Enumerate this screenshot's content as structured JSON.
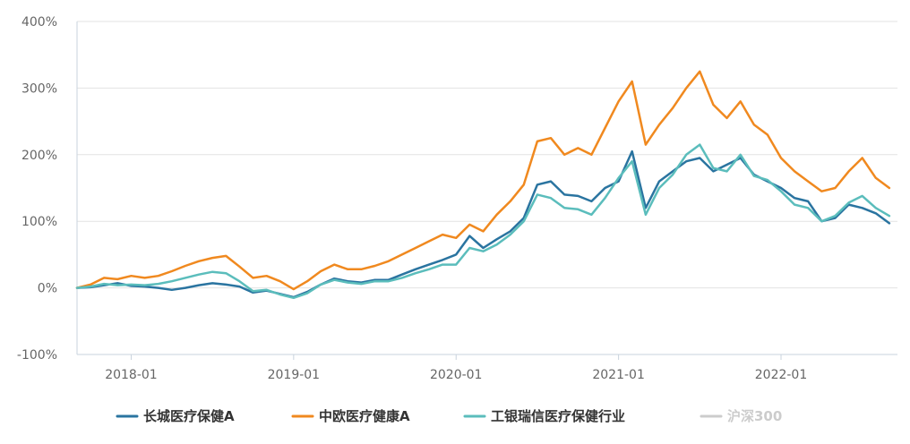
{
  "chart_data": {
    "type": "line",
    "title": "",
    "xlabel": "",
    "ylabel": "",
    "x_ticks": [
      "2018-01",
      "2019-01",
      "2020-01",
      "2021-01",
      "2022-01"
    ],
    "y_ticks": [
      "400%",
      "300%",
      "200%",
      "100%",
      "0%",
      "-100%"
    ],
    "ylim": [
      -100,
      400
    ],
    "xlim": [
      "2017-09",
      "2022-09"
    ],
    "grid": "horizontal",
    "legend_position": "bottom",
    "series": [
      {
        "name": "长城医疗保健A",
        "color": "#2a74a0",
        "active": true,
        "points": [
          [
            "2017-09",
            0
          ],
          [
            "2017-10",
            1
          ],
          [
            "2017-11",
            4
          ],
          [
            "2017-12",
            7
          ],
          [
            "2018-01",
            3
          ],
          [
            "2018-02",
            2
          ],
          [
            "2018-03",
            0
          ],
          [
            "2018-04",
            -3
          ],
          [
            "2018-05",
            0
          ],
          [
            "2018-06",
            4
          ],
          [
            "2018-07",
            7
          ],
          [
            "2018-08",
            5
          ],
          [
            "2018-09",
            2
          ],
          [
            "2018-10",
            -7
          ],
          [
            "2018-11",
            -4
          ],
          [
            "2018-12",
            -9
          ],
          [
            "2019-01",
            -14
          ],
          [
            "2019-02",
            -6
          ],
          [
            "2019-03",
            5
          ],
          [
            "2019-04",
            14
          ],
          [
            "2019-05",
            10
          ],
          [
            "2019-06",
            8
          ],
          [
            "2019-07",
            12
          ],
          [
            "2019-08",
            12
          ],
          [
            "2019-09",
            20
          ],
          [
            "2019-10",
            28
          ],
          [
            "2019-11",
            35
          ],
          [
            "2019-12",
            42
          ],
          [
            "2020-01",
            50
          ],
          [
            "2020-02",
            78
          ],
          [
            "2020-03",
            60
          ],
          [
            "2020-04",
            73
          ],
          [
            "2020-05",
            85
          ],
          [
            "2020-06",
            105
          ],
          [
            "2020-07",
            155
          ],
          [
            "2020-08",
            160
          ],
          [
            "2020-09",
            140
          ],
          [
            "2020-10",
            138
          ],
          [
            "2020-11",
            130
          ],
          [
            "2020-12",
            150
          ],
          [
            "2021-01",
            160
          ],
          [
            "2021-02",
            205
          ],
          [
            "2021-03",
            120
          ],
          [
            "2021-04",
            160
          ],
          [
            "2021-05",
            175
          ],
          [
            "2021-06",
            190
          ],
          [
            "2021-07",
            195
          ],
          [
            "2021-08",
            175
          ],
          [
            "2021-09",
            185
          ],
          [
            "2021-10",
            195
          ],
          [
            "2021-11",
            170
          ],
          [
            "2021-12",
            160
          ],
          [
            "2022-01",
            150
          ],
          [
            "2022-02",
            135
          ],
          [
            "2022-03",
            130
          ],
          [
            "2022-04",
            100
          ],
          [
            "2022-05",
            105
          ],
          [
            "2022-06",
            125
          ],
          [
            "2022-07",
            120
          ],
          [
            "2022-08",
            112
          ],
          [
            "2022-09",
            97
          ]
        ]
      },
      {
        "name": "中欧医疗健康A",
        "color": "#f0891f",
        "active": true,
        "points": [
          [
            "2017-09",
            0
          ],
          [
            "2017-10",
            5
          ],
          [
            "2017-11",
            15
          ],
          [
            "2017-12",
            13
          ],
          [
            "2018-01",
            18
          ],
          [
            "2018-02",
            15
          ],
          [
            "2018-03",
            18
          ],
          [
            "2018-04",
            25
          ],
          [
            "2018-05",
            33
          ],
          [
            "2018-06",
            40
          ],
          [
            "2018-07",
            45
          ],
          [
            "2018-08",
            48
          ],
          [
            "2018-09",
            32
          ],
          [
            "2018-10",
            15
          ],
          [
            "2018-11",
            18
          ],
          [
            "2018-12",
            10
          ],
          [
            "2019-01",
            -2
          ],
          [
            "2019-02",
            10
          ],
          [
            "2019-03",
            25
          ],
          [
            "2019-04",
            35
          ],
          [
            "2019-05",
            28
          ],
          [
            "2019-06",
            28
          ],
          [
            "2019-07",
            33
          ],
          [
            "2019-08",
            40
          ],
          [
            "2019-09",
            50
          ],
          [
            "2019-10",
            60
          ],
          [
            "2019-11",
            70
          ],
          [
            "2019-12",
            80
          ],
          [
            "2020-01",
            75
          ],
          [
            "2020-02",
            95
          ],
          [
            "2020-03",
            85
          ],
          [
            "2020-04",
            110
          ],
          [
            "2020-05",
            130
          ],
          [
            "2020-06",
            155
          ],
          [
            "2020-07",
            220
          ],
          [
            "2020-08",
            225
          ],
          [
            "2020-09",
            200
          ],
          [
            "2020-10",
            210
          ],
          [
            "2020-11",
            200
          ],
          [
            "2020-12",
            240
          ],
          [
            "2021-01",
            280
          ],
          [
            "2021-02",
            310
          ],
          [
            "2021-03",
            215
          ],
          [
            "2021-04",
            245
          ],
          [
            "2021-05",
            270
          ],
          [
            "2021-06",
            300
          ],
          [
            "2021-07",
            325
          ],
          [
            "2021-08",
            275
          ],
          [
            "2021-09",
            255
          ],
          [
            "2021-10",
            280
          ],
          [
            "2021-11",
            245
          ],
          [
            "2021-12",
            230
          ],
          [
            "2022-01",
            195
          ],
          [
            "2022-02",
            175
          ],
          [
            "2022-03",
            160
          ],
          [
            "2022-04",
            145
          ],
          [
            "2022-05",
            150
          ],
          [
            "2022-06",
            175
          ],
          [
            "2022-07",
            195
          ],
          [
            "2022-08",
            165
          ],
          [
            "2022-09",
            150
          ]
        ]
      },
      {
        "name": "工银瑞信医疗保健行业",
        "color": "#5bbdbc",
        "active": true,
        "points": [
          [
            "2017-09",
            0
          ],
          [
            "2017-10",
            2
          ],
          [
            "2017-11",
            6
          ],
          [
            "2017-12",
            4
          ],
          [
            "2018-01",
            5
          ],
          [
            "2018-02",
            4
          ],
          [
            "2018-03",
            6
          ],
          [
            "2018-04",
            10
          ],
          [
            "2018-05",
            15
          ],
          [
            "2018-06",
            20
          ],
          [
            "2018-07",
            24
          ],
          [
            "2018-08",
            22
          ],
          [
            "2018-09",
            10
          ],
          [
            "2018-10",
            -5
          ],
          [
            "2018-11",
            -3
          ],
          [
            "2018-12",
            -10
          ],
          [
            "2019-01",
            -15
          ],
          [
            "2019-02",
            -8
          ],
          [
            "2019-03",
            5
          ],
          [
            "2019-04",
            12
          ],
          [
            "2019-05",
            8
          ],
          [
            "2019-06",
            6
          ],
          [
            "2019-07",
            10
          ],
          [
            "2019-08",
            10
          ],
          [
            "2019-09",
            15
          ],
          [
            "2019-10",
            22
          ],
          [
            "2019-11",
            28
          ],
          [
            "2019-12",
            35
          ],
          [
            "2020-01",
            35
          ],
          [
            "2020-02",
            60
          ],
          [
            "2020-03",
            55
          ],
          [
            "2020-04",
            65
          ],
          [
            "2020-05",
            80
          ],
          [
            "2020-06",
            100
          ],
          [
            "2020-07",
            140
          ],
          [
            "2020-08",
            135
          ],
          [
            "2020-09",
            120
          ],
          [
            "2020-10",
            118
          ],
          [
            "2020-11",
            110
          ],
          [
            "2020-12",
            135
          ],
          [
            "2021-01",
            165
          ],
          [
            "2021-02",
            190
          ],
          [
            "2021-03",
            110
          ],
          [
            "2021-04",
            150
          ],
          [
            "2021-05",
            170
          ],
          [
            "2021-06",
            200
          ],
          [
            "2021-07",
            215
          ],
          [
            "2021-08",
            180
          ],
          [
            "2021-09",
            175
          ],
          [
            "2021-10",
            200
          ],
          [
            "2021-11",
            168
          ],
          [
            "2021-12",
            162
          ],
          [
            "2022-01",
            145
          ],
          [
            "2022-02",
            125
          ],
          [
            "2022-03",
            120
          ],
          [
            "2022-04",
            100
          ],
          [
            "2022-05",
            108
          ],
          [
            "2022-06",
            128
          ],
          [
            "2022-07",
            138
          ],
          [
            "2022-08",
            120
          ],
          [
            "2022-09",
            108
          ]
        ]
      },
      {
        "name": "沪深300",
        "color": "#cccccc",
        "active": false,
        "points": []
      }
    ]
  }
}
